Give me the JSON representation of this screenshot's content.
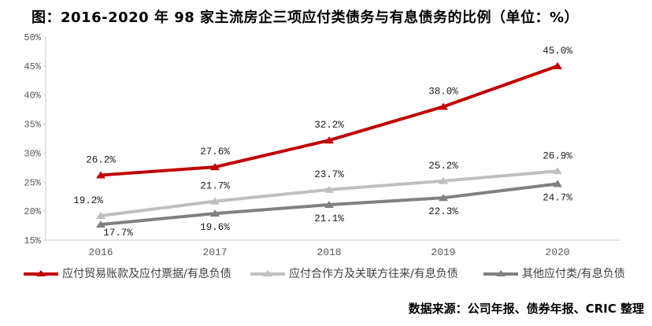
{
  "title": "图：2016-2020 年 98 家主流房企三项应付类债务与有息债务的比例（单位：%）",
  "source": "数据来源：公司年报、债券年报、CRIC 整理",
  "colors": {
    "series_red": "#c00000",
    "series_light_gray": "#bfbfbf",
    "series_dark_gray": "#808080",
    "axis_line": "#c9c9c9",
    "tick_text": "#595959",
    "data_label_text": "#1a1a1a"
  },
  "chart_data": {
    "type": "line",
    "title": "图：2016-2020 年 98 家主流房企三项应付类债务与有息债务的比例（单位：%）",
    "categories": [
      "2016",
      "2017",
      "2018",
      "2019",
      "2020"
    ],
    "series": [
      {
        "name": "应付贸易账款及应付票据/有息负债",
        "values": [
          26.2,
          27.6,
          32.2,
          38.0,
          45.0
        ],
        "color": "#c00000",
        "label_position": "above"
      },
      {
        "name": "应付合作方及关联方往来/有息负债",
        "values": [
          19.2,
          21.7,
          23.7,
          25.2,
          26.9
        ],
        "color": "#bfbfbf",
        "label_position": "above"
      },
      {
        "name": "其他应付类/有息负债",
        "values": [
          17.7,
          19.6,
          21.1,
          22.3,
          24.7
        ],
        "color": "#808080",
        "label_position": "below"
      }
    ],
    "xlabel": "",
    "ylabel": "",
    "ylim": [
      15,
      50
    ],
    "ytick_step": 5,
    "ytick_suffix": "%",
    "value_suffix": "%",
    "value_decimals": 1,
    "grid": false,
    "data_labels": true,
    "marker": "triangle-up",
    "legend_position": "bottom"
  }
}
